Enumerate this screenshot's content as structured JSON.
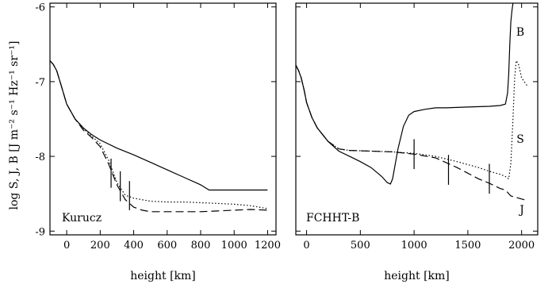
{
  "figure": {
    "ylabel": "log S, J, B  [J m⁻² s⁻¹ Hz⁻¹ sr⁻¹]"
  },
  "chart_data": [
    {
      "type": "line",
      "annotation": "Kurucz",
      "xlabel": "height  [km]",
      "xlim": [
        -100,
        1250
      ],
      "ylim": [
        -9.05,
        -5.95
      ],
      "xticks": [
        0,
        200,
        400,
        600,
        800,
        1000,
        1200
      ],
      "yticks": [
        -9,
        -8,
        -7,
        -6
      ],
      "series": [
        {
          "style": "solid",
          "x": [
            -100,
            -80,
            -60,
            -40,
            -20,
            0,
            20,
            50,
            100,
            150,
            200,
            300,
            400,
            500,
            600,
            700,
            800,
            850,
            900,
            1000,
            1100,
            1200
          ],
          "y": [
            -6.72,
            -6.77,
            -6.85,
            -7.0,
            -7.15,
            -7.3,
            -7.38,
            -7.5,
            -7.62,
            -7.71,
            -7.78,
            -7.89,
            -7.98,
            -8.08,
            -8.18,
            -8.28,
            -8.38,
            -8.45,
            -8.45,
            -8.45,
            -8.45,
            -8.45
          ]
        },
        {
          "style": "dotted",
          "x": [
            -100,
            -80,
            -60,
            -40,
            -20,
            0,
            20,
            50,
            100,
            150,
            200,
            250,
            300,
            350,
            400,
            500,
            600,
            700,
            800,
            900,
            1000,
            1100,
            1200
          ],
          "y": [
            -6.72,
            -6.77,
            -6.85,
            -7.0,
            -7.15,
            -7.3,
            -7.38,
            -7.5,
            -7.63,
            -7.73,
            -7.83,
            -8.05,
            -8.35,
            -8.52,
            -8.56,
            -8.6,
            -8.61,
            -8.61,
            -8.62,
            -8.63,
            -8.64,
            -8.66,
            -8.7
          ]
        },
        {
          "style": "dashed",
          "x": [
            -100,
            -80,
            -60,
            -40,
            -20,
            0,
            20,
            50,
            100,
            150,
            200,
            250,
            300,
            350,
            400,
            450,
            500,
            600,
            700,
            800,
            900,
            1000,
            1100,
            1200
          ],
          "y": [
            -6.72,
            -6.77,
            -6.85,
            -7.0,
            -7.15,
            -7.3,
            -7.38,
            -7.5,
            -7.65,
            -7.75,
            -7.87,
            -8.1,
            -8.38,
            -8.58,
            -8.68,
            -8.72,
            -8.74,
            -8.74,
            -8.74,
            -8.74,
            -8.73,
            -8.72,
            -8.71,
            -8.72
          ]
        }
      ],
      "markers": [
        {
          "x": 265,
          "y0": -8.03,
          "y1": -8.42
        },
        {
          "x": 320,
          "y0": -8.2,
          "y1": -8.6
        },
        {
          "x": 375,
          "y0": -8.33,
          "y1": -8.72
        }
      ]
    },
    {
      "type": "line",
      "annotation": "FCHHT-B",
      "xlabel": "height  [km]",
      "xlim": [
        -100,
        2150
      ],
      "ylim": [
        -9.05,
        -5.95
      ],
      "xticks": [
        0,
        500,
        1000,
        1500,
        2000
      ],
      "yticks": [
        -9,
        -8,
        -7,
        -6
      ],
      "curve_labels": [
        "B",
        "S",
        "J"
      ],
      "series": [
        {
          "name": "B",
          "style": "solid",
          "x": [
            -100,
            -75,
            -50,
            -25,
            0,
            50,
            100,
            200,
            300,
            400,
            500,
            600,
            700,
            750,
            780,
            800,
            850,
            900,
            950,
            1000,
            1100,
            1200,
            1300,
            1500,
            1700,
            1800,
            1850,
            1870,
            1880,
            1890,
            1900,
            1910,
            1920
          ],
          "y": [
            -6.78,
            -6.85,
            -6.95,
            -7.1,
            -7.28,
            -7.48,
            -7.62,
            -7.8,
            -7.93,
            -8.0,
            -8.07,
            -8.15,
            -8.27,
            -8.35,
            -8.37,
            -8.3,
            -7.9,
            -7.6,
            -7.45,
            -7.4,
            -7.37,
            -7.35,
            -7.35,
            -7.34,
            -7.33,
            -7.32,
            -7.3,
            -7.15,
            -6.9,
            -6.5,
            -6.2,
            -6.05,
            -5.95
          ]
        },
        {
          "name": "S",
          "style": "dotted",
          "x": [
            -100,
            -75,
            -50,
            -25,
            0,
            50,
            100,
            200,
            300,
            400,
            600,
            800,
            1000,
            1200,
            1400,
            1600,
            1700,
            1800,
            1850,
            1880,
            1900,
            1920,
            1935,
            1950,
            1970,
            2000,
            2050
          ],
          "y": [
            -6.78,
            -6.85,
            -6.95,
            -7.1,
            -7.28,
            -7.48,
            -7.62,
            -7.8,
            -7.9,
            -7.92,
            -7.93,
            -7.94,
            -7.96,
            -8.0,
            -8.07,
            -8.15,
            -8.2,
            -8.24,
            -8.27,
            -8.3,
            -8.1,
            -7.5,
            -6.95,
            -6.72,
            -6.76,
            -6.95,
            -7.05
          ]
        },
        {
          "name": "J",
          "style": "dashed",
          "x": [
            -100,
            -75,
            -50,
            -25,
            0,
            50,
            100,
            200,
            300,
            400,
            600,
            800,
            1000,
            1200,
            1400,
            1600,
            1700,
            1800,
            1850,
            1900,
            2000,
            2050
          ],
          "y": [
            -6.78,
            -6.85,
            -6.95,
            -7.1,
            -7.28,
            -7.48,
            -7.62,
            -7.8,
            -7.9,
            -7.92,
            -7.93,
            -7.94,
            -7.97,
            -8.02,
            -8.15,
            -8.3,
            -8.36,
            -8.43,
            -8.45,
            -8.53,
            -8.57,
            -8.59
          ]
        }
      ],
      "markers": [
        {
          "x": 1000,
          "y0": -7.77,
          "y1": -8.17
        },
        {
          "x": 1320,
          "y0": -7.98,
          "y1": -8.38
        },
        {
          "x": 1700,
          "y0": -8.1,
          "y1": -8.5
        }
      ]
    }
  ]
}
